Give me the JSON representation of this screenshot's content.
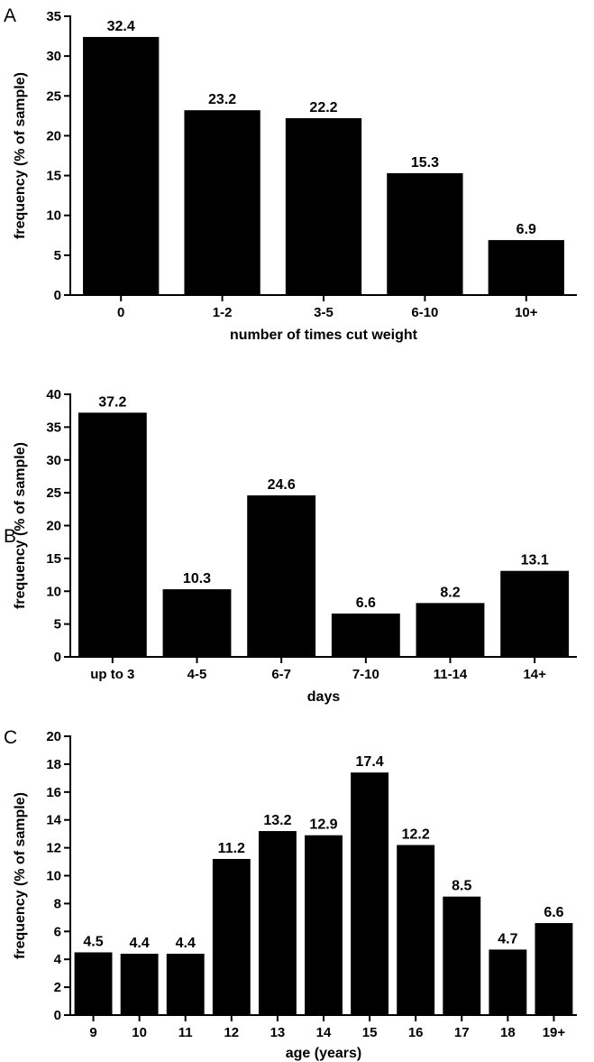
{
  "chart_data": [
    {
      "type": "bar",
      "panel": "A",
      "categories": [
        "0",
        "1-2",
        "3-5",
        "6-10",
        "10+"
      ],
      "values": [
        32.4,
        23.2,
        22.2,
        15.3,
        6.9
      ],
      "data_labels": [
        "32.4",
        "23.2",
        "22.2",
        "15.3",
        "6.9"
      ],
      "xlabel": "number of times cut weight",
      "ylabel": "frequency (% of sample)",
      "ylim": [
        0,
        35
      ],
      "yticks": [
        0,
        5,
        10,
        15,
        20,
        25,
        30,
        35
      ],
      "grid": false,
      "bar_color": "#000000"
    },
    {
      "type": "bar",
      "panel": "B",
      "categories": [
        "up to 3",
        "4-5",
        "6-7",
        "7-10",
        "11-14",
        "14+"
      ],
      "values": [
        37.2,
        10.3,
        24.6,
        6.6,
        8.2,
        13.1
      ],
      "data_labels": [
        "37.2",
        "10.3",
        "24.6",
        "6.6",
        "8.2",
        "13.1"
      ],
      "xlabel": "days",
      "ylabel": "frequency (% of sample)",
      "ylim": [
        0,
        40
      ],
      "yticks": [
        0,
        5,
        10,
        15,
        20,
        25,
        30,
        35,
        40
      ],
      "grid": false,
      "bar_color": "#000000"
    },
    {
      "type": "bar",
      "panel": "C",
      "categories": [
        "9",
        "10",
        "11",
        "12",
        "13",
        "14",
        "15",
        "16",
        "17",
        "18",
        "19+"
      ],
      "values": [
        4.5,
        4.4,
        4.4,
        11.2,
        13.2,
        12.9,
        17.4,
        12.2,
        8.5,
        4.7,
        6.6
      ],
      "data_labels": [
        "4.5",
        "4.4",
        "4.4",
        "11.2",
        "13.2",
        "12.9",
        "17.4",
        "12.2",
        "8.5",
        "4.7",
        "6.6"
      ],
      "xlabel": "age (years)",
      "ylabel": "frequency (% of sample)",
      "ylim": [
        0,
        20
      ],
      "yticks": [
        0,
        2,
        4,
        6,
        8,
        10,
        12,
        14,
        16,
        18,
        20
      ],
      "grid": false,
      "bar_color": "#000000"
    }
  ]
}
